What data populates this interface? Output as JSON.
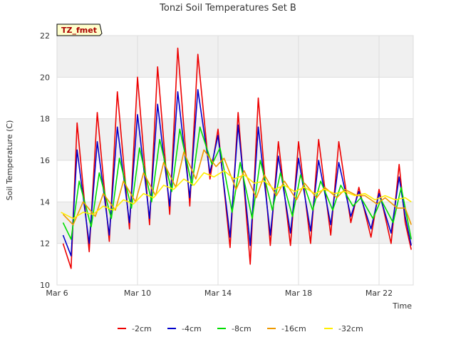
{
  "chart_data": {
    "type": "line",
    "title": "Tonzi Soil Temperatures Set B",
    "xlabel": "Time",
    "ylabel": "Soil Temperature (C)",
    "badge": "TZ_fmet",
    "ylim": [
      10,
      22
    ],
    "xlim": [
      "2016-03-06",
      "2016-03-23.7"
    ],
    "yticks": [
      10,
      12,
      14,
      16,
      18,
      20,
      22
    ],
    "xticks": [
      "Mar 6",
      "Mar 10",
      "Mar 14",
      "Mar 18",
      "Mar 22"
    ],
    "grid": true,
    "legend_position": "bottom",
    "series": [
      {
        "name": "-2cm",
        "color": "#ee0000",
        "x": [
          "2016-03-06.3",
          "2016-03-06.7",
          "2016-03-07.0",
          "2016-03-07.6",
          "2016-03-08.0",
          "2016-03-08.6",
          "2016-03-09.0",
          "2016-03-09.6",
          "2016-03-10.0",
          "2016-03-10.6",
          "2016-03-11.0",
          "2016-03-11.6",
          "2016-03-12.0",
          "2016-03-12.6",
          "2016-03-13.0",
          "2016-03-13.6",
          "2016-03-14.0",
          "2016-03-14.6",
          "2016-03-15.0",
          "2016-03-15.6",
          "2016-03-16.0",
          "2016-03-16.6",
          "2016-03-17.0",
          "2016-03-17.6",
          "2016-03-18.0",
          "2016-03-18.6",
          "2016-03-19.0",
          "2016-03-19.6",
          "2016-03-20.0",
          "2016-03-20.6",
          "2016-03-21.0",
          "2016-03-21.6",
          "2016-03-22.0",
          "2016-03-22.6",
          "2016-03-23.0",
          "2016-03-23.3",
          "2016-03-23.6"
        ],
        "values": [
          12.0,
          10.8,
          17.8,
          11.6,
          18.3,
          12.1,
          19.3,
          12.7,
          20.0,
          12.9,
          20.5,
          13.4,
          21.4,
          13.8,
          21.1,
          15.1,
          17.5,
          11.8,
          18.3,
          11.0,
          19.0,
          11.9,
          16.9,
          11.9,
          16.9,
          12.0,
          17.0,
          12.4,
          16.9,
          13.0,
          14.7,
          12.3,
          14.6,
          12.0,
          15.8,
          13.0,
          11.7
        ]
      },
      {
        "name": "-4cm",
        "color": "#0000cc",
        "x": [
          "2016-03-06.3",
          "2016-03-06.7",
          "2016-03-07.0",
          "2016-03-07.6",
          "2016-03-08.0",
          "2016-03-08.6",
          "2016-03-09.0",
          "2016-03-09.6",
          "2016-03-10.0",
          "2016-03-10.6",
          "2016-03-11.0",
          "2016-03-11.6",
          "2016-03-12.0",
          "2016-03-12.6",
          "2016-03-13.0",
          "2016-03-13.6",
          "2016-03-14.0",
          "2016-03-14.6",
          "2016-03-15.0",
          "2016-03-15.6",
          "2016-03-16.0",
          "2016-03-16.6",
          "2016-03-17.0",
          "2016-03-17.6",
          "2016-03-18.0",
          "2016-03-18.6",
          "2016-03-19.0",
          "2016-03-19.6",
          "2016-03-20.0",
          "2016-03-20.6",
          "2016-03-21.0",
          "2016-03-21.6",
          "2016-03-22.0",
          "2016-03-22.6",
          "2016-03-23.0",
          "2016-03-23.3",
          "2016-03-23.6"
        ],
        "values": [
          12.4,
          11.4,
          16.5,
          12.0,
          16.9,
          12.4,
          17.6,
          13.0,
          18.2,
          13.2,
          18.7,
          13.8,
          19.3,
          14.2,
          19.4,
          15.4,
          17.2,
          12.3,
          17.7,
          11.9,
          17.6,
          12.4,
          16.2,
          12.5,
          16.1,
          12.6,
          16.0,
          12.9,
          15.9,
          13.3,
          14.5,
          12.7,
          14.4,
          12.5,
          15.2,
          13.3,
          11.9
        ]
      },
      {
        "name": "-8cm",
        "color": "#00dd00",
        "x": [
          "2016-03-06.3",
          "2016-03-06.7",
          "2016-03-07.1",
          "2016-03-07.7",
          "2016-03-08.1",
          "2016-03-08.7",
          "2016-03-09.1",
          "2016-03-09.7",
          "2016-03-10.1",
          "2016-03-10.7",
          "2016-03-11.1",
          "2016-03-11.7",
          "2016-03-12.1",
          "2016-03-12.7",
          "2016-03-13.1",
          "2016-03-13.7",
          "2016-03-14.1",
          "2016-03-14.7",
          "2016-03-15.1",
          "2016-03-15.7",
          "2016-03-16.1",
          "2016-03-16.7",
          "2016-03-17.1",
          "2016-03-17.7",
          "2016-03-18.1",
          "2016-03-18.7",
          "2016-03-19.1",
          "2016-03-19.7",
          "2016-03-20.1",
          "2016-03-20.7",
          "2016-03-21.1",
          "2016-03-21.7",
          "2016-03-22.1",
          "2016-03-22.7",
          "2016-03-23.1",
          "2016-03-23.6"
        ],
        "values": [
          13.0,
          12.2,
          15.0,
          12.8,
          15.4,
          13.2,
          16.1,
          13.7,
          16.6,
          14.0,
          17.0,
          14.5,
          17.5,
          14.8,
          17.6,
          15.8,
          16.6,
          13.5,
          15.9,
          13.2,
          16.0,
          13.6,
          15.4,
          13.3,
          15.3,
          13.6,
          15.0,
          13.6,
          14.8,
          13.8,
          14.2,
          13.2,
          14.1,
          13.0,
          14.7,
          12.2
        ]
      },
      {
        "name": "-16cm",
        "color": "#ee9900",
        "x": [
          "2016-03-06.3",
          "2016-03-06.8",
          "2016-03-07.3",
          "2016-03-07.9",
          "2016-03-08.3",
          "2016-03-08.9",
          "2016-03-09.3",
          "2016-03-09.9",
          "2016-03-10.3",
          "2016-03-10.9",
          "2016-03-11.3",
          "2016-03-11.9",
          "2016-03-12.3",
          "2016-03-12.9",
          "2016-03-13.3",
          "2016-03-13.9",
          "2016-03-14.3",
          "2016-03-14.9",
          "2016-03-15.3",
          "2016-03-15.9",
          "2016-03-16.3",
          "2016-03-16.9",
          "2016-03-17.3",
          "2016-03-17.9",
          "2016-03-18.3",
          "2016-03-18.9",
          "2016-03-19.3",
          "2016-03-19.9",
          "2016-03-20.3",
          "2016-03-20.9",
          "2016-03-21.3",
          "2016-03-21.9",
          "2016-03-22.3",
          "2016-03-22.9",
          "2016-03-23.3",
          "2016-03-23.6"
        ],
        "values": [
          13.4,
          12.9,
          14.0,
          13.3,
          14.4,
          13.6,
          15.0,
          14.0,
          15.4,
          14.3,
          15.9,
          14.7,
          16.4,
          15.1,
          16.5,
          15.7,
          16.1,
          14.6,
          15.5,
          14.2,
          15.3,
          14.3,
          15.0,
          14.1,
          14.9,
          14.2,
          14.7,
          14.2,
          14.6,
          14.3,
          14.3,
          13.9,
          14.2,
          13.7,
          13.7,
          12.9
        ]
      },
      {
        "name": "-32cm",
        "color": "#ffee00",
        "x": [
          "2016-03-06.2",
          "2016-03-06.8",
          "2016-03-07.3",
          "2016-03-07.8",
          "2016-03-08.3",
          "2016-03-08.8",
          "2016-03-09.3",
          "2016-03-09.8",
          "2016-03-10.3",
          "2016-03-10.8",
          "2016-03-11.3",
          "2016-03-11.8",
          "2016-03-12.3",
          "2016-03-12.8",
          "2016-03-13.3",
          "2016-03-13.8",
          "2016-03-14.3",
          "2016-03-14.8",
          "2016-03-15.3",
          "2016-03-15.8",
          "2016-03-16.3",
          "2016-03-16.8",
          "2016-03-17.3",
          "2016-03-17.8",
          "2016-03-18.3",
          "2016-03-18.8",
          "2016-03-19.3",
          "2016-03-19.8",
          "2016-03-20.3",
          "2016-03-20.8",
          "2016-03-21.3",
          "2016-03-21.8",
          "2016-03-22.3",
          "2016-03-22.8",
          "2016-03-23.3",
          "2016-03-23.6"
        ],
        "values": [
          13.5,
          13.2,
          13.5,
          13.4,
          13.8,
          13.6,
          14.1,
          13.9,
          14.4,
          14.2,
          14.8,
          14.6,
          15.1,
          14.8,
          15.4,
          15.2,
          15.5,
          15.1,
          15.3,
          14.9,
          15.0,
          14.6,
          14.8,
          14.5,
          14.7,
          14.4,
          14.6,
          14.4,
          14.5,
          14.3,
          14.4,
          14.1,
          14.3,
          14.1,
          14.2,
          14.0
        ]
      }
    ]
  }
}
